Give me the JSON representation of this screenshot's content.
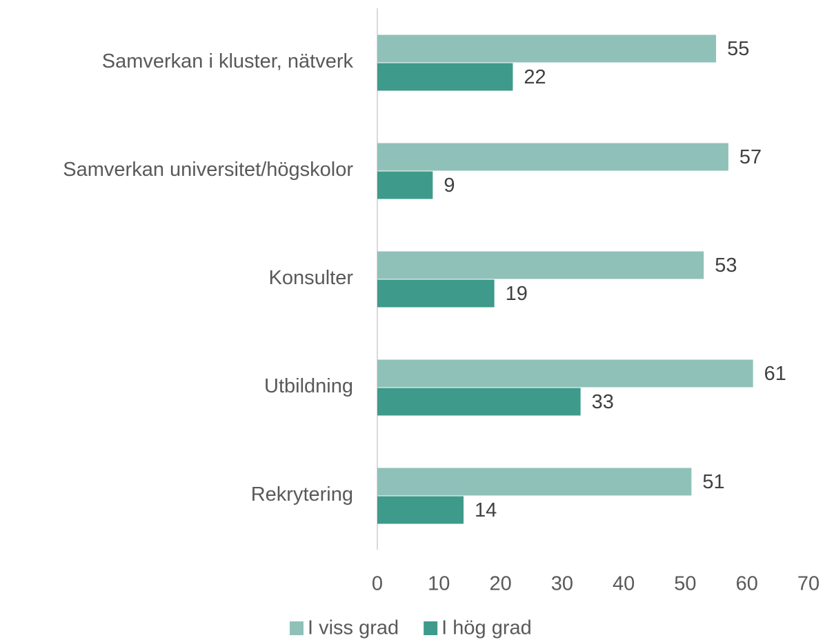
{
  "chart_data": {
    "type": "hbar",
    "categories": [
      "Samverkan i kluster, nätverk",
      "Samverkan universitet/högskolor",
      "Konsulter",
      "Utbildning",
      "Rekrytering"
    ],
    "series": [
      {
        "name": "I viss grad",
        "color": "#8fc1b9",
        "values": [
          55,
          57,
          53,
          61,
          51
        ]
      },
      {
        "name": "I hög grad",
        "color": "#3e9a8a",
        "values": [
          22,
          9,
          19,
          33,
          14
        ]
      }
    ],
    "xlim": [
      0,
      70
    ],
    "xticks": [
      0,
      10,
      20,
      30,
      40,
      50,
      60,
      70
    ],
    "grid": false,
    "legend": "bottom"
  }
}
